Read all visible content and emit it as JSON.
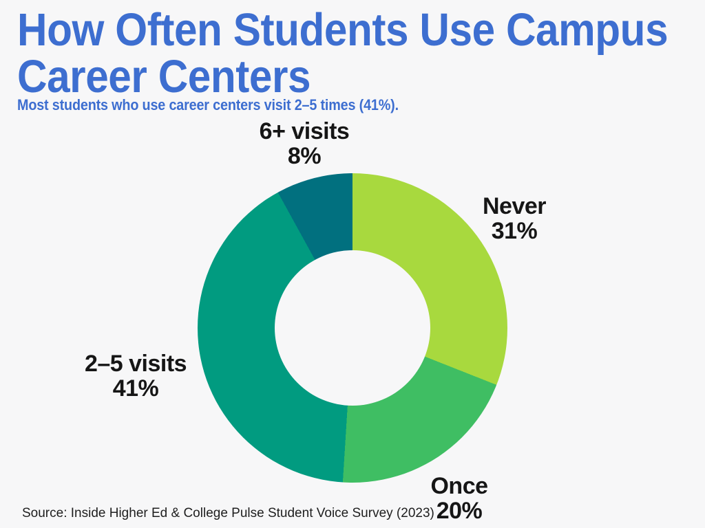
{
  "page": {
    "background": "#F7F7F8"
  },
  "header": {
    "title_line1": "How Often Students Use Campus",
    "title_line2": "Career Centers",
    "subtitle": "Most students who use career centers visit 2–5 times (41%).",
    "accent_color": "#3D6ED0"
  },
  "chart_data": {
    "type": "pie",
    "variant": "donut",
    "title": "How Often Students Use Campus Career Centers",
    "subtitle": "Most students who use career centers visit 2–5 times (41%).",
    "start_angle_deg": 0,
    "direction": "clockwise",
    "inner_radius_ratio": 0.5,
    "legend": "none",
    "labels_position": "outside",
    "slices": [
      {
        "label": "Never",
        "value": 31,
        "display_pct": "31%",
        "color": "#A8D93E"
      },
      {
        "label": "Once",
        "value": 20,
        "display_pct": "20%",
        "color": "#3FBE63"
      },
      {
        "label": "2–5 visits",
        "value": 41,
        "display_pct": "41%",
        "color": "#019B80"
      },
      {
        "label": "6+ visits",
        "value": 8,
        "display_pct": "8%",
        "color": "#01707F"
      }
    ]
  },
  "footer": {
    "source": "Source: Inside Higher Ed & College Pulse Student Voice Survey (2023)"
  }
}
